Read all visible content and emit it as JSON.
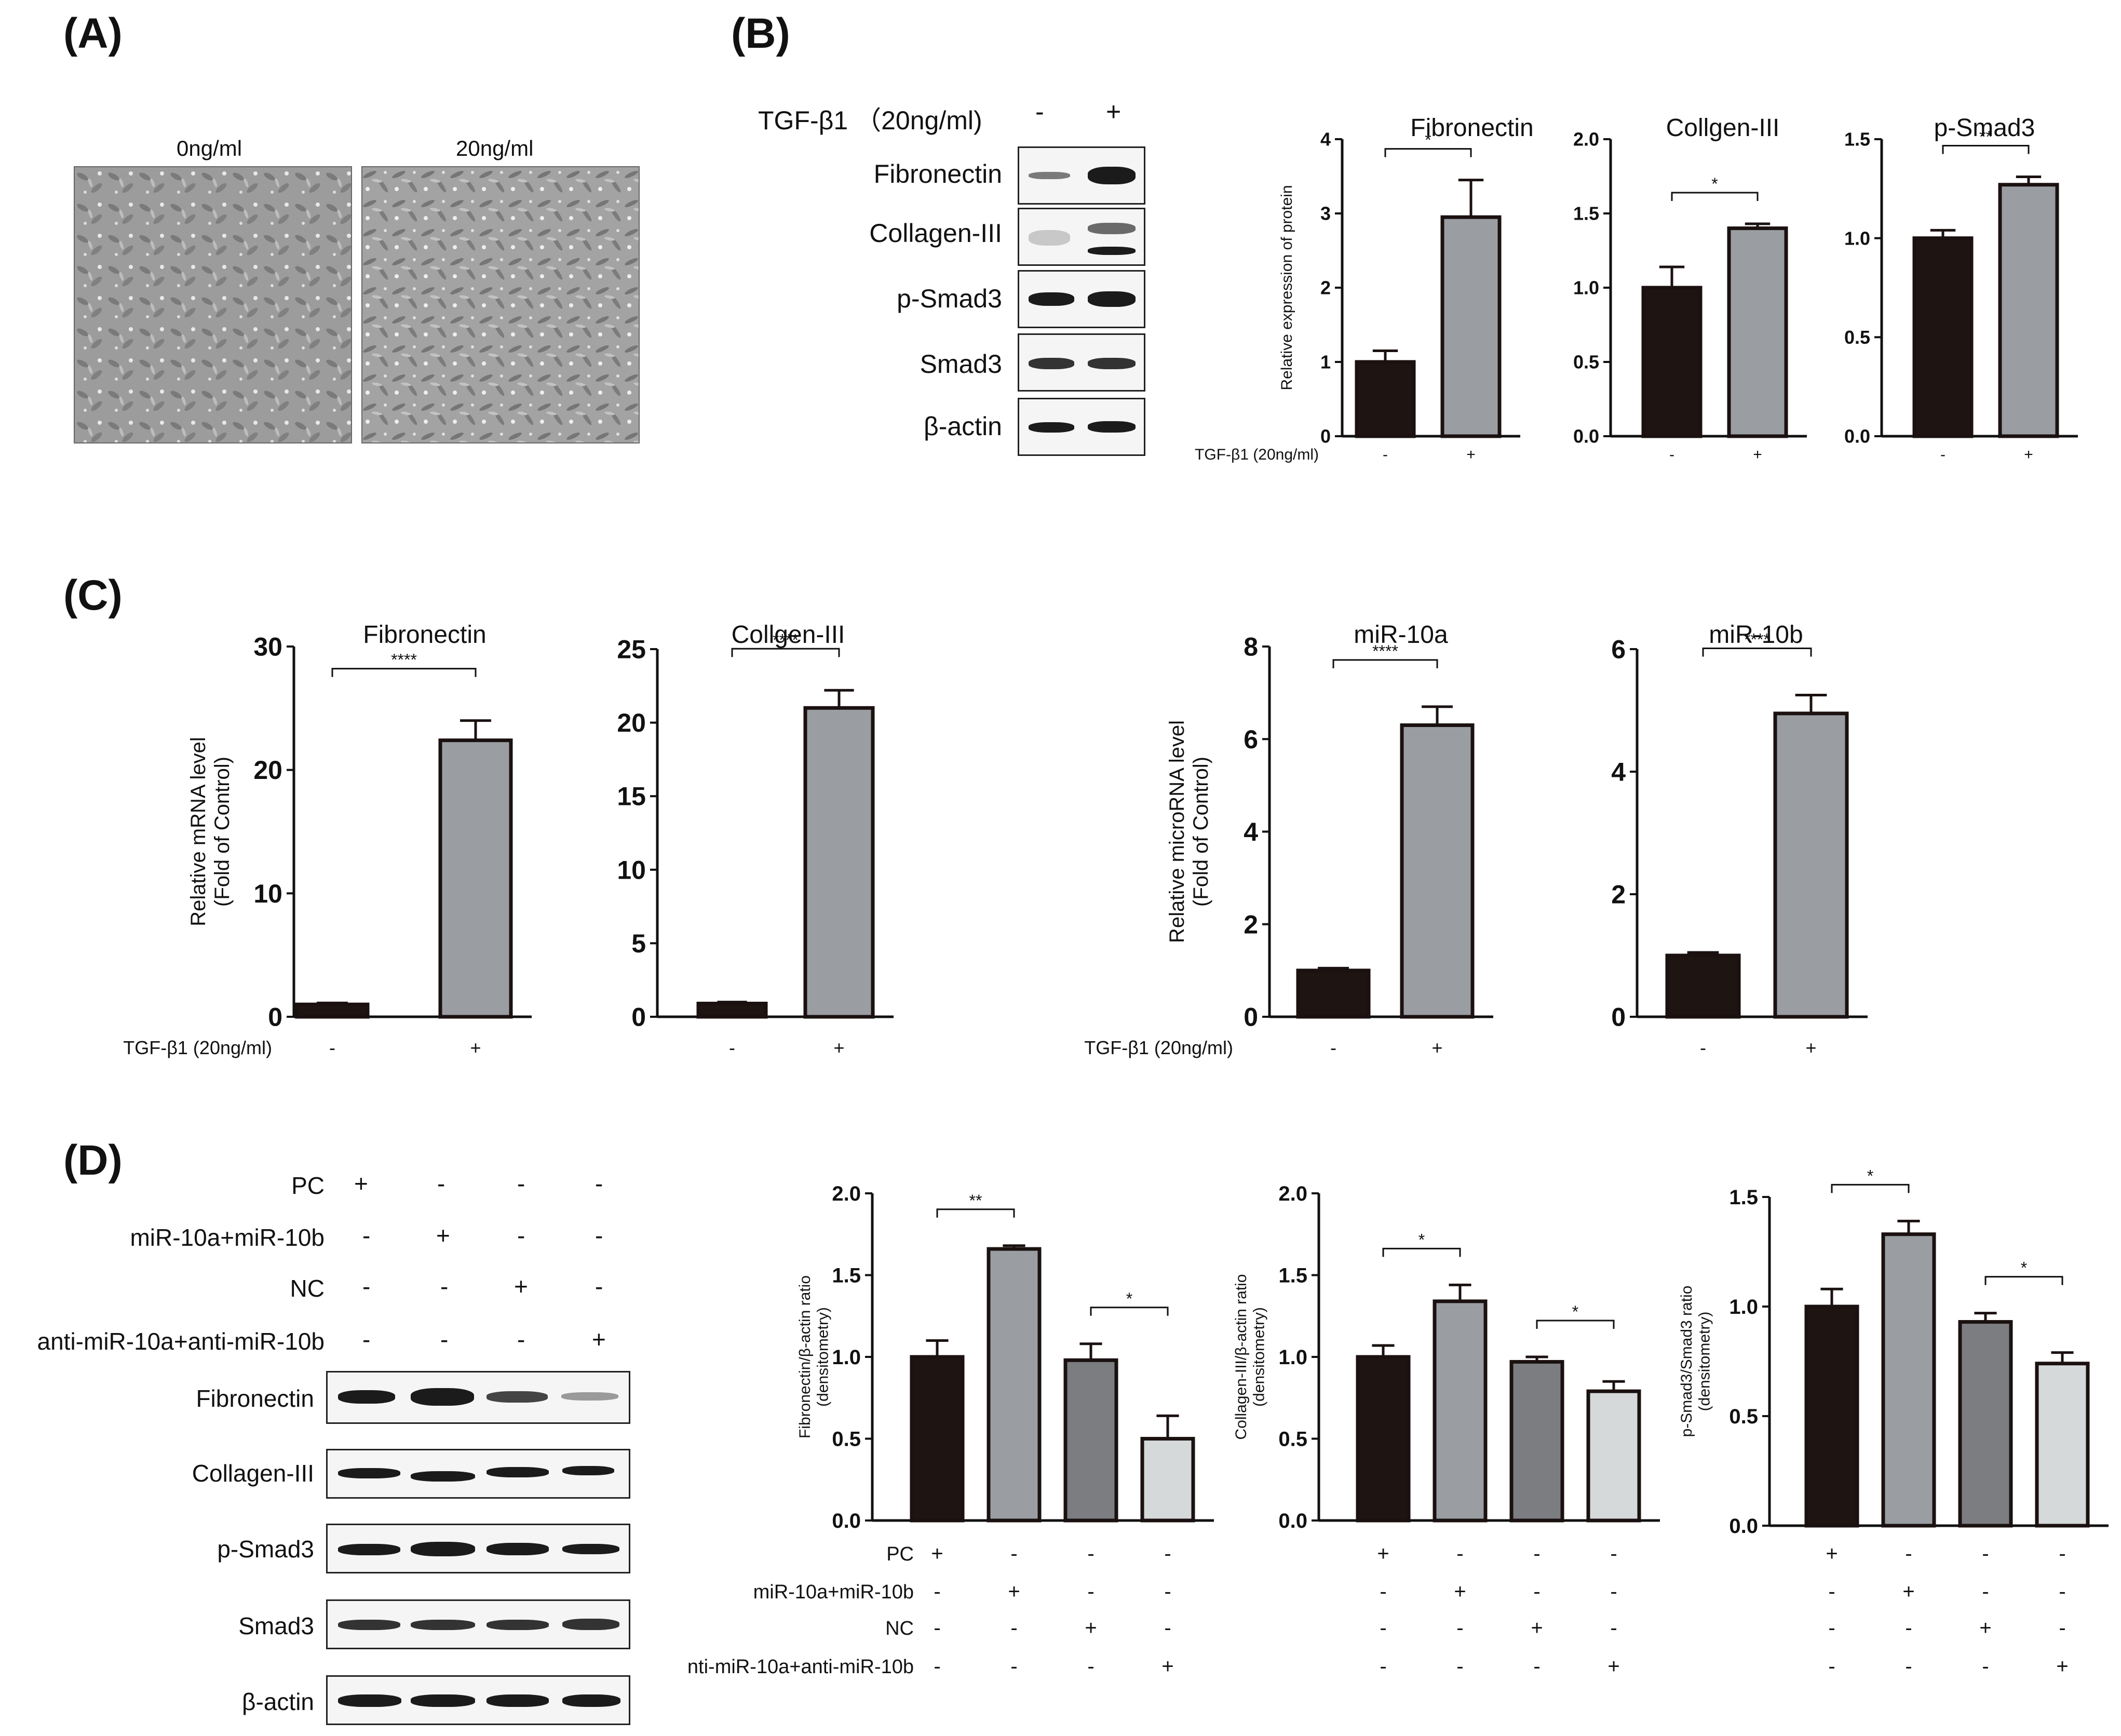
{
  "panels": {
    "A": "(A)",
    "B": "(B)",
    "C": "(C)",
    "D": "(D)"
  },
  "panel_a": {
    "labels": [
      "0ng/ml",
      "20ng/ml"
    ]
  },
  "panel_b_blot": {
    "treatment_label": "TGF-β1  （20ng/ml)",
    "lanes": [
      "-",
      "+"
    ],
    "rows": [
      "Fibronectin",
      "Collagen-III",
      "p-Smad3",
      "Smad3",
      "β-actin"
    ]
  },
  "panel_d_blot": {
    "conditions": [
      {
        "label": "PC",
        "signs": [
          "+",
          "-",
          "-",
          "-"
        ]
      },
      {
        "label": "miR-10a+miR-10b",
        "signs": [
          "-",
          "+",
          "-",
          "-"
        ]
      },
      {
        "label": "NC",
        "signs": [
          "-",
          "-",
          "+",
          "-"
        ]
      },
      {
        "label": "anti-miR-10a+anti-miR-10b",
        "signs": [
          "-",
          "-",
          "-",
          "+"
        ]
      }
    ],
    "rows": [
      "Fibronectin",
      "Collagen-III",
      "p-Smad3",
      "Smad3",
      "β-actin"
    ]
  },
  "colors": {
    "bar_dark": "#1e1412",
    "bar_gray": "#9a9ea3",
    "bar_mid": "#7b7d80",
    "bar_light": "#d5d9d9"
  },
  "chart_data": [
    {
      "id": "B1",
      "type": "bar",
      "title": "Fibronectin",
      "ylabel": "Relative expression of protein",
      "categories": [
        "-",
        "+"
      ],
      "values": [
        1.0,
        2.95
      ],
      "errors": [
        0.15,
        0.5
      ],
      "ylim": [
        0,
        4
      ],
      "yticks": [
        0,
        1,
        2,
        3,
        4
      ],
      "ytick_labels": [
        "0",
        "1",
        "2",
        "3",
        "4"
      ],
      "colors": [
        "#1e1412",
        "#9a9ea3"
      ],
      "significance": [
        {
          "from": 0,
          "to": 1,
          "label": "*"
        }
      ],
      "condition_rows": [
        {
          "label": "TGF-β1  (20ng/ml)",
          "signs": [
            "-",
            "+"
          ]
        }
      ]
    },
    {
      "id": "B2",
      "type": "bar",
      "title": "Collgen-III",
      "ylabel": "",
      "categories": [
        "-",
        "+"
      ],
      "values": [
        1.0,
        1.4
      ],
      "errors": [
        0.14,
        0.03
      ],
      "ylim": [
        0,
        2.0
      ],
      "yticks": [
        0,
        0.5,
        1.0,
        1.5,
        2.0
      ],
      "ytick_labels": [
        "0.0",
        "0.5",
        "1.0",
        "1.5",
        "2.0"
      ],
      "colors": [
        "#1e1412",
        "#9a9ea3"
      ],
      "significance": [
        {
          "from": 0,
          "to": 1,
          "label": "*"
        }
      ],
      "condition_rows": [
        {
          "label": "",
          "signs": [
            "-",
            "+"
          ]
        }
      ]
    },
    {
      "id": "B3",
      "type": "bar",
      "title": "p-Smad3",
      "ylabel": "",
      "categories": [
        "-",
        "+"
      ],
      "values": [
        1.0,
        1.27
      ],
      "errors": [
        0.04,
        0.04
      ],
      "ylim": [
        0,
        1.5
      ],
      "yticks": [
        0,
        0.5,
        1.0,
        1.5
      ],
      "ytick_labels": [
        "0.0",
        "0.5",
        "1.0",
        "1.5"
      ],
      "colors": [
        "#1e1412",
        "#9a9ea3"
      ],
      "significance": [
        {
          "from": 0,
          "to": 1,
          "label": "**"
        }
      ],
      "condition_rows": [
        {
          "label": "",
          "signs": [
            "-",
            "+"
          ]
        }
      ]
    },
    {
      "id": "C1",
      "type": "bar",
      "title": "Fibronectin",
      "ylabel": "Relative mRNA level\n(Fold of Control)",
      "categories": [
        "-",
        "+"
      ],
      "values": [
        1.0,
        22.4
      ],
      "errors": [
        0.12,
        1.6
      ],
      "ylim": [
        0,
        30
      ],
      "yticks": [
        0,
        10,
        20,
        30
      ],
      "ytick_labels": [
        "0",
        "10",
        "20",
        "30"
      ],
      "colors": [
        "#1e1412",
        "#9a9ea3"
      ],
      "significance": [
        {
          "from": 0,
          "to": 1,
          "label": "****"
        }
      ],
      "condition_rows": [
        {
          "label": "TGF-β1  (20ng/ml)",
          "signs": [
            "-",
            "+"
          ]
        }
      ]
    },
    {
      "id": "C2",
      "type": "bar",
      "title": "Collgen-III",
      "ylabel": "",
      "categories": [
        "-",
        "+"
      ],
      "values": [
        0.9,
        21.0
      ],
      "errors": [
        0.1,
        1.2
      ],
      "ylim": [
        0,
        25
      ],
      "yticks": [
        0,
        5,
        10,
        15,
        20,
        25
      ],
      "ytick_labels": [
        "0",
        "5",
        "10",
        "15",
        "20",
        "25"
      ],
      "colors": [
        "#1e1412",
        "#9a9ea3"
      ],
      "significance": [
        {
          "from": 0,
          "to": 1,
          "label": "****"
        }
      ],
      "condition_rows": [
        {
          "label": "",
          "signs": [
            "-",
            "+"
          ]
        }
      ]
    },
    {
      "id": "C3",
      "type": "bar",
      "title": "miR-10a",
      "ylabel": "Relative microRNA level\n(Fold of Control)",
      "categories": [
        "-",
        "+"
      ],
      "values": [
        1.0,
        6.3
      ],
      "errors": [
        0.05,
        0.4
      ],
      "ylim": [
        0,
        8
      ],
      "yticks": [
        0,
        2,
        4,
        6,
        8
      ],
      "ytick_labels": [
        "0",
        "2",
        "4",
        "6",
        "8"
      ],
      "colors": [
        "#1e1412",
        "#9a9ea3"
      ],
      "significance": [
        {
          "from": 0,
          "to": 1,
          "label": "****"
        }
      ],
      "condition_rows": [
        {
          "label": "TGF-β1  (20ng/ml)",
          "signs": [
            "-",
            "+"
          ]
        }
      ]
    },
    {
      "id": "C4",
      "type": "bar",
      "title": "miR-10b",
      "ylabel": "",
      "categories": [
        "-",
        "+"
      ],
      "values": [
        1.0,
        4.95
      ],
      "errors": [
        0.05,
        0.3
      ],
      "ylim": [
        0,
        6
      ],
      "yticks": [
        0,
        2,
        4,
        6
      ],
      "ytick_labels": [
        "0",
        "2",
        "4",
        "6"
      ],
      "colors": [
        "#1e1412",
        "#9a9ea3"
      ],
      "significance": [
        {
          "from": 0,
          "to": 1,
          "label": "****"
        }
      ],
      "condition_rows": [
        {
          "label": "",
          "signs": [
            "-",
            "+"
          ]
        }
      ]
    },
    {
      "id": "D1",
      "type": "bar",
      "title": "",
      "ylabel": "Fibronectin/β-actin ratio\n(densitometry)",
      "categories": [
        "PC",
        "miR-10a+miR-10b",
        "NC",
        "anti-miR-10a+anti-miR-10b"
      ],
      "values": [
        1.0,
        1.66,
        0.98,
        0.5
      ],
      "errors": [
        0.1,
        0.02,
        0.1,
        0.14
      ],
      "ylim": [
        0,
        2.0
      ],
      "yticks": [
        0,
        0.5,
        1.0,
        1.5,
        2.0
      ],
      "ytick_labels": [
        "0.0",
        "0.5",
        "1.0",
        "1.5",
        "2.0"
      ],
      "colors": [
        "#1e1412",
        "#9a9ea3",
        "#7b7d80",
        "#d5d9d9"
      ],
      "significance": [
        {
          "from": 0,
          "to": 1,
          "label": "**"
        },
        {
          "from": 2,
          "to": 3,
          "label": "*"
        }
      ],
      "condition_rows": [
        {
          "label": "PC",
          "signs": [
            "+",
            "-",
            "-",
            "-"
          ]
        },
        {
          "label": "miR-10a+miR-10b",
          "signs": [
            "-",
            "+",
            "-",
            "-"
          ]
        },
        {
          "label": "NC",
          "signs": [
            "-",
            "-",
            "+",
            "-"
          ]
        },
        {
          "label": "nti-miR-10a+anti-miR-10b",
          "signs": [
            "-",
            "-",
            "-",
            "+"
          ]
        }
      ]
    },
    {
      "id": "D2",
      "type": "bar",
      "title": "",
      "ylabel": "Collagen-III/β-actin ratio\n(densitometry)",
      "categories": [
        "PC",
        "miR-10a+miR-10b",
        "NC",
        "anti-miR-10a+anti-miR-10b"
      ],
      "values": [
        1.0,
        1.34,
        0.97,
        0.79
      ],
      "errors": [
        0.07,
        0.1,
        0.03,
        0.06
      ],
      "ylim": [
        0,
        2.0
      ],
      "yticks": [
        0,
        0.5,
        1.0,
        1.5,
        2.0
      ],
      "ytick_labels": [
        "0.0",
        "0.5",
        "1.0",
        "1.5",
        "2.0"
      ],
      "colors": [
        "#1e1412",
        "#9a9ea3",
        "#7b7d80",
        "#d5d9d9"
      ],
      "significance": [
        {
          "from": 0,
          "to": 1,
          "label": "*"
        },
        {
          "from": 2,
          "to": 3,
          "label": "*"
        }
      ],
      "condition_rows": [
        {
          "label": "",
          "signs": [
            "+",
            "-",
            "-",
            "-"
          ]
        },
        {
          "label": "",
          "signs": [
            "-",
            "+",
            "-",
            "-"
          ]
        },
        {
          "label": "",
          "signs": [
            "-",
            "-",
            "+",
            "-"
          ]
        },
        {
          "label": "",
          "signs": [
            "-",
            "-",
            "-",
            "+"
          ]
        }
      ]
    },
    {
      "id": "D3",
      "type": "bar",
      "title": "",
      "ylabel": "p-Smad3/Smad3 ratio\n(densitometry)",
      "categories": [
        "PC",
        "miR-10a+miR-10b",
        "NC",
        "anti-miR-10a+anti-miR-10b"
      ],
      "values": [
        1.0,
        1.33,
        0.93,
        0.74
      ],
      "errors": [
        0.08,
        0.06,
        0.04,
        0.05
      ],
      "ylim": [
        0,
        1.5
      ],
      "yticks": [
        0,
        0.5,
        1.0,
        1.5
      ],
      "ytick_labels": [
        "0.0",
        "0.5",
        "1.0",
        "1.5"
      ],
      "colors": [
        "#1e1412",
        "#9a9ea3",
        "#7b7d80",
        "#d5d9d9"
      ],
      "significance": [
        {
          "from": 0,
          "to": 1,
          "label": "*"
        },
        {
          "from": 2,
          "to": 3,
          "label": "*"
        }
      ],
      "condition_rows": [
        {
          "label": "",
          "signs": [
            "+",
            "-",
            "-",
            "-"
          ]
        },
        {
          "label": "",
          "signs": [
            "-",
            "+",
            "-",
            "-"
          ]
        },
        {
          "label": "",
          "signs": [
            "-",
            "-",
            "+",
            "-"
          ]
        },
        {
          "label": "",
          "signs": [
            "-",
            "-",
            "-",
            "+"
          ]
        }
      ]
    }
  ]
}
